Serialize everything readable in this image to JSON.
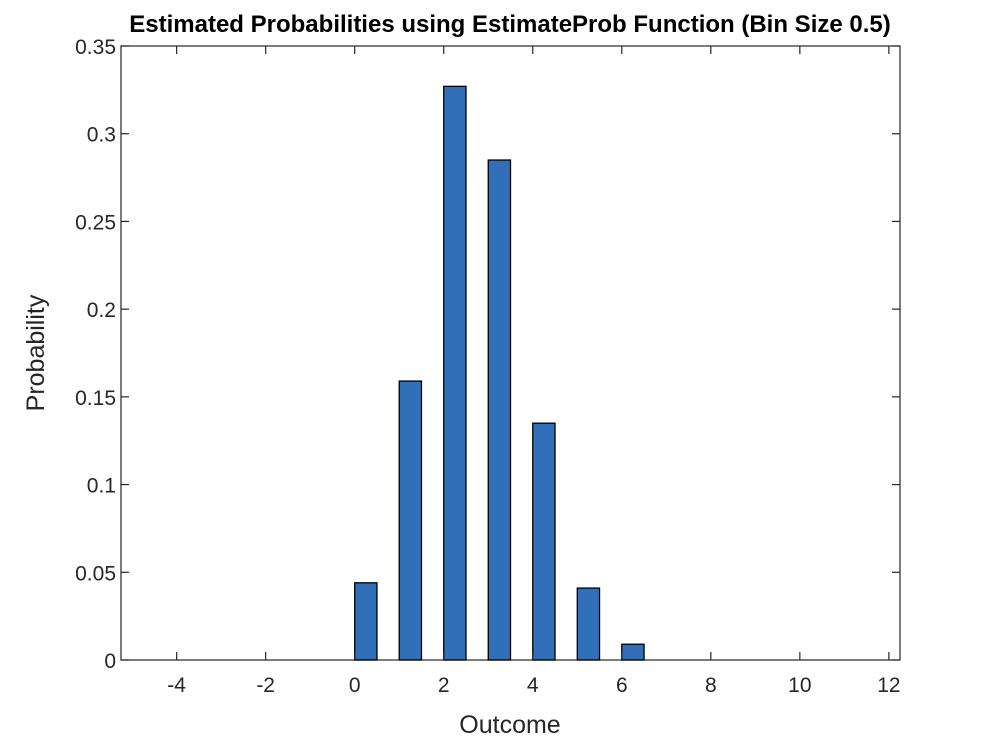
{
  "chart_data": {
    "type": "bar",
    "title": "Estimated Probabilities using EstimateProb Function (Bin Size 0.5)",
    "xlabel": "Outcome",
    "ylabel": "Probability",
    "xlim": [
      -5.25,
      12.25
    ],
    "ylim": [
      0,
      0.35
    ],
    "bar_width": 0.5,
    "grid": false,
    "colors": {
      "bar_fill": "#3170b9",
      "bar_edge": "#000000",
      "axis": "#262626"
    },
    "x_ticks": [
      {
        "value": -4,
        "label": "-4"
      },
      {
        "value": -2,
        "label": "-2"
      },
      {
        "value": 0,
        "label": "0"
      },
      {
        "value": 2,
        "label": "2"
      },
      {
        "value": 4,
        "label": "4"
      },
      {
        "value": 6,
        "label": "6"
      },
      {
        "value": 8,
        "label": "8"
      },
      {
        "value": 10,
        "label": "10"
      },
      {
        "value": 12,
        "label": "12"
      }
    ],
    "y_ticks": [
      {
        "value": 0,
        "label": "0"
      },
      {
        "value": 0.05,
        "label": "0.05"
      },
      {
        "value": 0.1,
        "label": "0.1"
      },
      {
        "value": 0.15,
        "label": "0.15"
      },
      {
        "value": 0.2,
        "label": "0.2"
      },
      {
        "value": 0.25,
        "label": "0.25"
      },
      {
        "value": 0.3,
        "label": "0.3"
      },
      {
        "value": 0.35,
        "label": "0.35"
      }
    ],
    "bars": [
      {
        "x": 0.25,
        "value": 0.044
      },
      {
        "x": 1.25,
        "value": 0.159
      },
      {
        "x": 2.25,
        "value": 0.327
      },
      {
        "x": 3.25,
        "value": 0.285
      },
      {
        "x": 4.25,
        "value": 0.135
      },
      {
        "x": 5.25,
        "value": 0.041
      },
      {
        "x": 6.25,
        "value": 0.009
      }
    ]
  }
}
